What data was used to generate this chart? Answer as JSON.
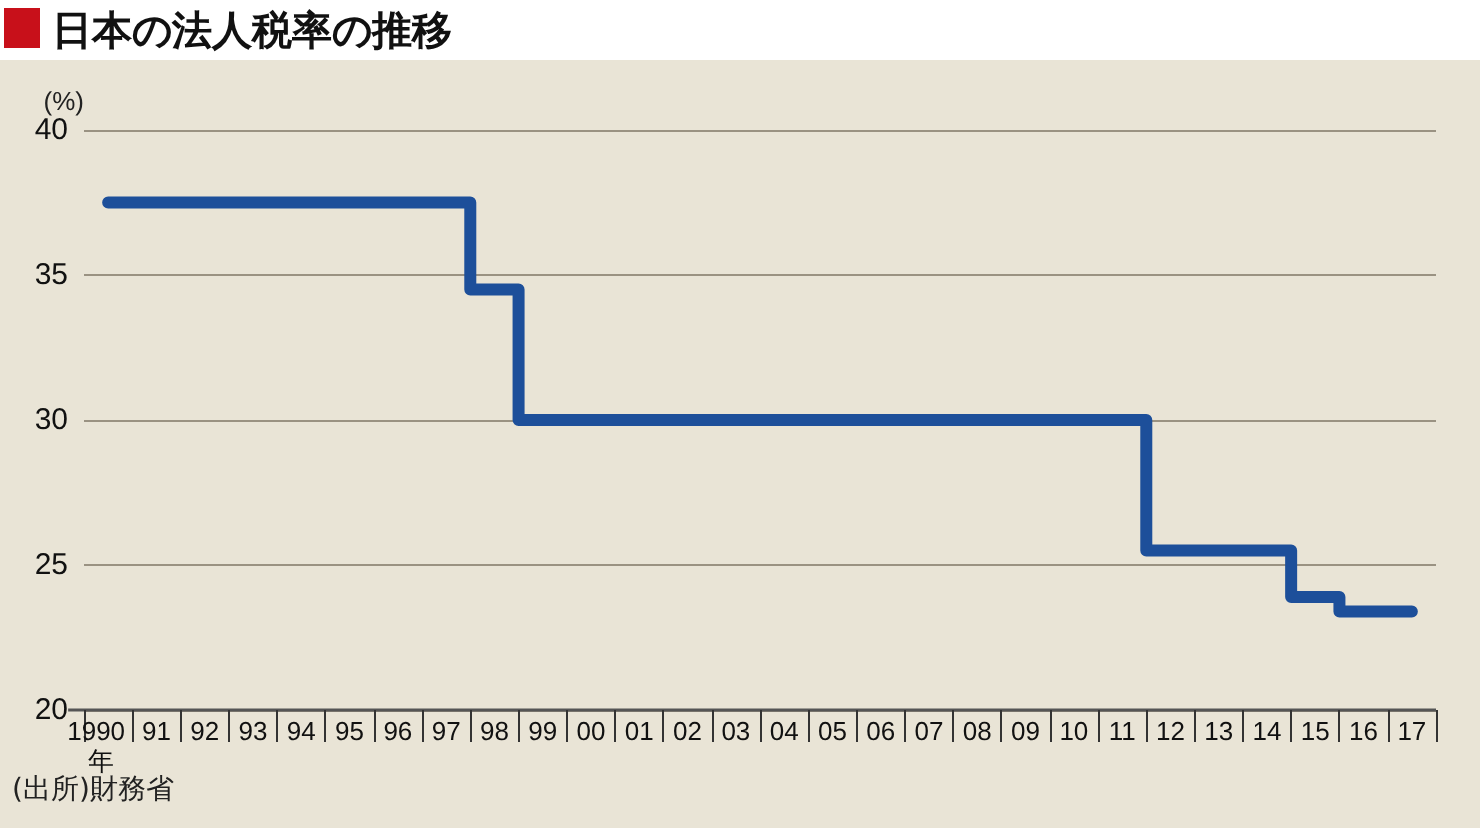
{
  "chart_data": {
    "type": "step",
    "title": "日本の法人税率の推移",
    "ylabel": "(%)",
    "xlabel": "年",
    "annotations": [
      "(出所)財務省"
    ],
    "categories": [
      "1990",
      "91",
      "92",
      "93",
      "94",
      "95",
      "96",
      "97",
      "98",
      "99",
      "00",
      "01",
      "02",
      "03",
      "04",
      "05",
      "06",
      "07",
      "08",
      "09",
      "10",
      "11",
      "12",
      "13",
      "14",
      "15",
      "16",
      "17"
    ],
    "series": [
      {
        "color": "#1d4f9a",
        "values": [
          37.5,
          37.5,
          37.5,
          37.5,
          37.5,
          37.5,
          37.5,
          37.5,
          34.5,
          30.0,
          30.0,
          30.0,
          30.0,
          30.0,
          30.0,
          30.0,
          30.0,
          30.0,
          30.0,
          30.0,
          30.0,
          30.0,
          25.5,
          25.5,
          25.5,
          23.9,
          23.4,
          23.4
        ]
      }
    ],
    "ylim": [
      20,
      40
    ],
    "yticks": [
      20,
      25,
      30,
      35,
      40
    ],
    "grid": "y",
    "marker": "none",
    "line_style": "solid"
  }
}
